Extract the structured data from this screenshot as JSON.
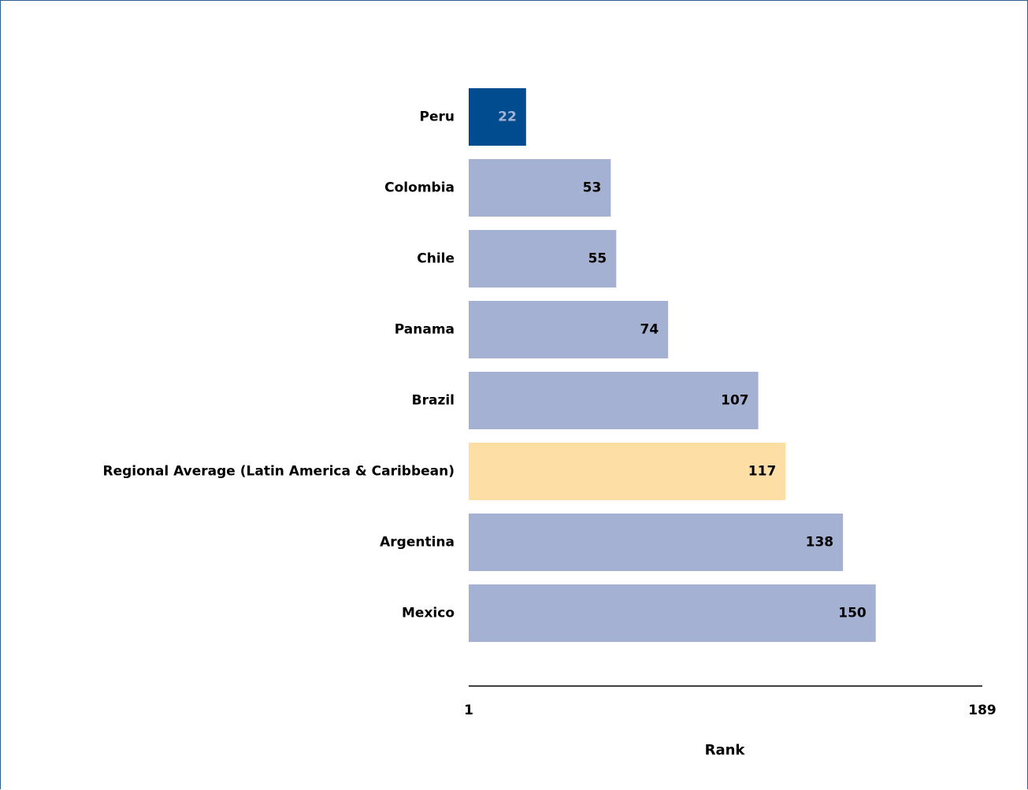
{
  "chart_data": {
    "type": "bar",
    "orientation": "horizontal",
    "title": "",
    "xlabel": "Rank",
    "ylabel": "",
    "xlim": [
      1,
      189
    ],
    "x_ticks": [
      "1",
      "189"
    ],
    "grid": false,
    "legend": "none",
    "categories": [
      "Peru",
      "Colombia",
      "Chile",
      "Panama",
      "Brazil",
      "Regional Average (Latin America & Caribbean)",
      "Argentina",
      "Mexico"
    ],
    "values": [
      22,
      53,
      55,
      74,
      107,
      117,
      138,
      150
    ],
    "colors": {
      "highlight": "#004c8f",
      "default": "#a5b1d3",
      "regional": "#fddfa6",
      "highlight_text": "#a5b1d3",
      "default_text": "#000000",
      "axis_line": "#000000"
    },
    "bar_styles": [
      "highlight",
      "default",
      "default",
      "default",
      "default",
      "regional",
      "default",
      "default"
    ]
  }
}
